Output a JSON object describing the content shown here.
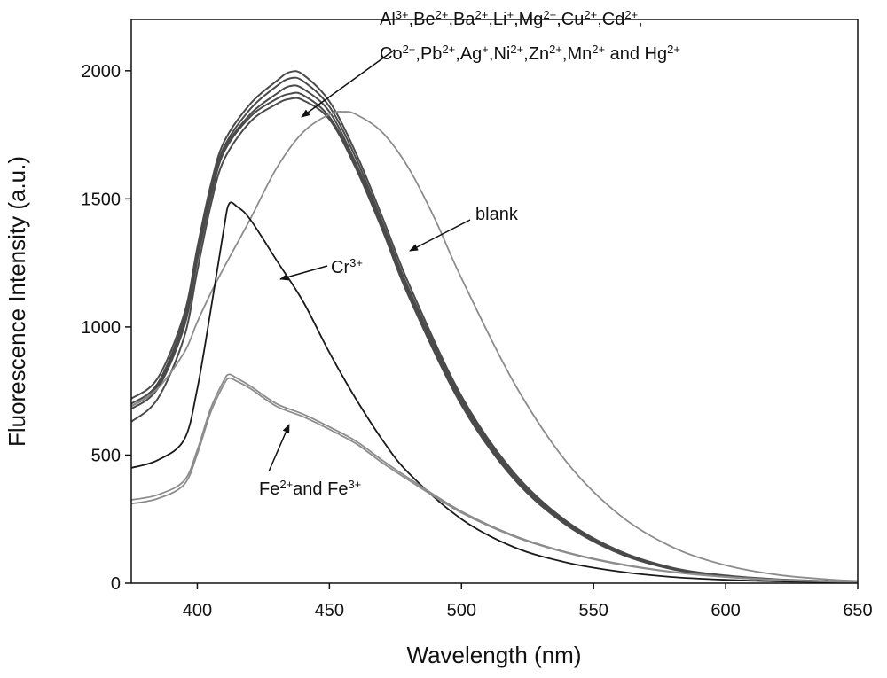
{
  "chart_data": {
    "type": "line",
    "title": "",
    "xlabel": "Wavelength (nm)",
    "ylabel": "Fluorescence Intensity (a.u.)",
    "xlim": [
      375,
      650
    ],
    "ylim": [
      0,
      2200
    ],
    "xticks": [
      "400",
      "450",
      "500",
      "550",
      "600",
      "650"
    ],
    "yticks": [
      "0",
      "500",
      "1000",
      "1500",
      "2000"
    ],
    "grid": false,
    "legend": "none",
    "colors": {
      "dark": "#1a1a1a",
      "mid": "#4a4a4a",
      "light": "#8c8c8c"
    },
    "series": [
      {
        "group": "metals",
        "x": [
          375,
          385,
          395,
          400,
          405,
          410,
          420,
          430,
          435,
          440,
          450,
          460,
          470,
          480,
          500,
          520,
          540,
          560,
          580,
          600,
          620,
          640,
          650
        ],
        "y": [
          720,
          800,
          1050,
          1310,
          1550,
          1720,
          1870,
          1960,
          1995,
          1985,
          1880,
          1680,
          1430,
          1170,
          730,
          430,
          240,
          125,
          60,
          30,
          15,
          8,
          6
        ]
      },
      {
        "group": "metals",
        "x": [
          375,
          385,
          395,
          400,
          405,
          410,
          420,
          430,
          435,
          440,
          450,
          460,
          470,
          480,
          500,
          520,
          540,
          560,
          580,
          600,
          620,
          640,
          650
        ],
        "y": [
          700,
          780,
          1030,
          1290,
          1530,
          1700,
          1850,
          1940,
          1970,
          1960,
          1860,
          1660,
          1410,
          1150,
          720,
          420,
          235,
          120,
          58,
          28,
          14,
          7,
          5
        ]
      },
      {
        "group": "metals",
        "x": [
          375,
          385,
          395,
          400,
          405,
          410,
          420,
          430,
          435,
          440,
          450,
          460,
          470,
          480,
          500,
          520,
          540,
          560,
          580,
          600,
          620,
          640,
          650
        ],
        "y": [
          690,
          770,
          1010,
          1270,
          1510,
          1690,
          1830,
          1910,
          1940,
          1930,
          1840,
          1640,
          1400,
          1140,
          710,
          415,
          230,
          118,
          56,
          27,
          13,
          7,
          5
        ]
      },
      {
        "group": "metals",
        "x": [
          375,
          385,
          395,
          400,
          405,
          410,
          420,
          430,
          435,
          440,
          450,
          460,
          470,
          480,
          500,
          520,
          540,
          560,
          580,
          600,
          620,
          640,
          650
        ],
        "y": [
          680,
          760,
          1000,
          1260,
          1500,
          1680,
          1820,
          1890,
          1910,
          1905,
          1820,
          1630,
          1390,
          1130,
          700,
          410,
          228,
          116,
          55,
          26,
          13,
          6,
          5
        ]
      },
      {
        "group": "metals",
        "x": [
          375,
          385,
          395,
          400,
          405,
          410,
          420,
          430,
          435,
          440,
          450,
          460,
          470,
          480,
          500,
          520,
          540,
          560,
          580,
          600,
          620,
          640,
          650
        ],
        "y": [
          630,
          720,
          960,
          1220,
          1470,
          1650,
          1800,
          1870,
          1890,
          1885,
          1810,
          1620,
          1380,
          1120,
          695,
          405,
          225,
          115,
          54,
          26,
          12,
          6,
          4
        ]
      },
      {
        "group": "blank",
        "x": [
          375,
          385,
          395,
          400,
          405,
          410,
          420,
          430,
          440,
          450,
          455,
          460,
          470,
          480,
          490,
          500,
          520,
          540,
          560,
          580,
          600,
          620,
          640,
          650
        ],
        "y": [
          690,
          760,
          900,
          1020,
          1130,
          1230,
          1420,
          1620,
          1760,
          1830,
          1840,
          1830,
          1760,
          1620,
          1420,
          1190,
          780,
          470,
          265,
          140,
          70,
          32,
          14,
          9
        ]
      },
      {
        "group": "Cr",
        "x": [
          375,
          385,
          395,
          400,
          405,
          410,
          412,
          415,
          420,
          430,
          440,
          450,
          460,
          470,
          480,
          500,
          520,
          540,
          560,
          580,
          600,
          620,
          640,
          650
        ],
        "y": [
          450,
          480,
          560,
          760,
          1060,
          1380,
          1480,
          1470,
          1420,
          1260,
          1100,
          900,
          720,
          560,
          430,
          250,
          140,
          80,
          45,
          24,
          13,
          7,
          4,
          3
        ]
      },
      {
        "group": "Fe",
        "x": [
          375,
          385,
          395,
          400,
          405,
          410,
          412,
          415,
          420,
          430,
          440,
          450,
          460,
          470,
          480,
          500,
          520,
          540,
          560,
          580,
          600,
          620,
          640,
          650
        ],
        "y": [
          325,
          345,
          400,
          520,
          680,
          790,
          815,
          800,
          770,
          700,
          660,
          610,
          555,
          480,
          410,
          280,
          185,
          120,
          75,
          44,
          25,
          13,
          7,
          4
        ]
      },
      {
        "group": "Fe",
        "x": [
          375,
          385,
          395,
          400,
          405,
          410,
          412,
          415,
          420,
          430,
          440,
          450,
          460,
          470,
          480,
          500,
          520,
          540,
          560,
          580,
          600,
          620,
          640,
          650
        ],
        "y": [
          310,
          330,
          385,
          505,
          665,
          775,
          800,
          788,
          760,
          690,
          650,
          600,
          545,
          470,
          402,
          275,
          182,
          118,
          73,
          43,
          24,
          12,
          6,
          4
        ]
      }
    ],
    "annotations": {
      "metals_line1": "Al<sup>3+</sup>,Be<sup>2+</sup>,Ba<sup>2+</sup>,Li<sup>+</sup>,Mg<sup>2+</sup>,Cu<sup>2+</sup>,Cd<sup>2+</sup>,",
      "metals_line2": "Co<sup>2+</sup>,Pb<sup>2+</sup>,Ag<sup>+</sup>,Ni<sup>2+</sup>,Zn<sup>2+</sup>,Mn<sup>2+</sup> and Hg<sup>2+</sup>",
      "blank": "blank",
      "cr": "Cr<sup>3+</sup>",
      "fe": "Fe<sup>2+</sup>and Fe<sup>3+</sup>"
    }
  }
}
